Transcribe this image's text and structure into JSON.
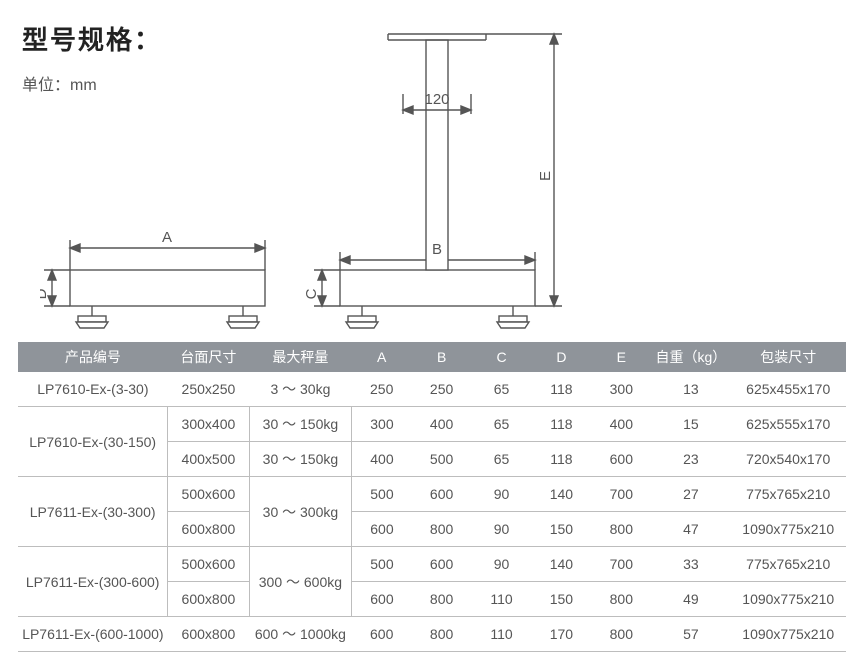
{
  "title": "型号规格：",
  "unit_label": "单位：mm",
  "diagram": {
    "stroke": "#555",
    "fill": "#e0e0e0",
    "labels": {
      "A": "A",
      "B": "B",
      "C": "C",
      "D": "D",
      "E": "E",
      "width120": "120"
    }
  },
  "table": {
    "headers": [
      "产品编号",
      "台面尺寸",
      "最大秤量",
      "A",
      "B",
      "C",
      "D",
      "E",
      "自重（kg）",
      "包装尺寸"
    ],
    "rows": [
      {
        "prod": "LP7610-Ex-(3-30)",
        "dim": "250x250",
        "max": "3 ～ 30kg",
        "A": "250",
        "B": "250",
        "C": "65",
        "D": "118",
        "E": "300",
        "W": "13",
        "pkg": "625x455x170",
        "prod_span": 1,
        "max_span": 1
      },
      {
        "prod": "LP7610-Ex-(30-150)",
        "dim": "300x400",
        "max": "30 ～ 150kg",
        "A": "300",
        "B": "400",
        "C": "65",
        "D": "118",
        "E": "400",
        "W": "15",
        "pkg": "625x555x170",
        "prod_span": 2,
        "max_span": 1
      },
      {
        "dim": "400x500",
        "max": "30 ～ 150kg",
        "A": "400",
        "B": "500",
        "C": "65",
        "D": "118",
        "E": "600",
        "W": "23",
        "pkg": "720x540x170",
        "max_span": 1
      },
      {
        "prod": "LP7611-Ex-(30-300)",
        "dim": "500x600",
        "max": "30 ～ 300kg",
        "A": "500",
        "B": "600",
        "C": "90",
        "D": "140",
        "E": "700",
        "W": "27",
        "pkg": "775x765x210",
        "prod_span": 2,
        "max_span": 2
      },
      {
        "dim": "600x800",
        "A": "600",
        "B": "800",
        "C": "90",
        "D": "150",
        "E": "800",
        "W": "47",
        "pkg": "1090x775x210"
      },
      {
        "prod": "LP7611-Ex-(300-600)",
        "dim": "500x600",
        "max": "300 ～ 600kg",
        "A": "500",
        "B": "600",
        "C": "90",
        "D": "140",
        "E": "700",
        "W": "33",
        "pkg": "775x765x210",
        "prod_span": 2,
        "max_span": 2
      },
      {
        "dim": "600x800",
        "A": "600",
        "B": "800",
        "C": "110",
        "D": "150",
        "E": "800",
        "W": "49",
        "pkg": "1090x775x210"
      },
      {
        "prod": "LP7611-Ex-(600-1000)",
        "dim": "600x800",
        "max": "600 ～ 1000kg",
        "A": "600",
        "B": "800",
        "C": "110",
        "D": "170",
        "E": "800",
        "W": "57",
        "pkg": "1090x775x210",
        "prod_span": 1,
        "max_span": 1
      }
    ]
  }
}
